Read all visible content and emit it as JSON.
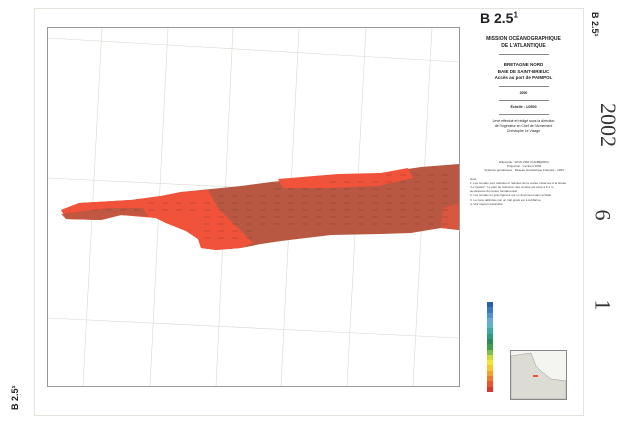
{
  "sheet": {
    "code": "B 2.5",
    "code_sup": "1",
    "side_code": "B 2.5¹",
    "stamp": {
      "year": "2002",
      "month": "6",
      "day": "1"
    }
  },
  "title_block": {
    "mission": "MISSION OCÉANOGRAPHIQUE",
    "mission2": "DE L'ATLANTIQUE",
    "region": "BRETAGNE NORD",
    "bay": "BAIE DE SAINT-BRIEUC",
    "access": "Accès au port de PAIMPOL",
    "year": "2000",
    "scale": "Échelle : 1/2500",
    "credit1": "Levé effectué et rédigé sous la direction",
    "credit2": "de l'Ingénieur en Chef de l'Armement",
    "credit3": "Christophe Le Visage"
  },
  "notes": {
    "ellipsoid": "Ellipsoïde : WGS 1984 (CANBERRA)",
    "projection": "Projection : Lambert 1993",
    "system": "Système géodésique : Réseau Géodésique Français - 1993",
    "heading": "Note",
    "lines": [
      "1. Les sondes sont réduites et réduites de la marée observée à la bouée",
      "\"Le Quistic\". Le plan de réduction des sondes est situé à 5.1 m",
      "au-dessous du repère fondamental.",
      "2. Les sondes en gras figurent sur un document sans échelle.",
      "3. La zone délimitée par un trait épais est à la Marine.",
      "4. Voir rapport particulier."
    ]
  },
  "map": {
    "survey_colors": {
      "bright": "#f0523a",
      "dark": "#b85843",
      "mid": "#d9573e"
    },
    "legend_colors": [
      "#2b5fa8",
      "#3a78c0",
      "#4f92d0",
      "#6aa9d8",
      "#58b6c8",
      "#3fa9a0",
      "#2f9a7e",
      "#2e8a5c",
      "#3f9c4a",
      "#7fbf45",
      "#c9dc3d",
      "#f2e53a",
      "#f6c933",
      "#f3a12f",
      "#ee7a2e",
      "#e8552f",
      "#d9382c"
    ]
  }
}
